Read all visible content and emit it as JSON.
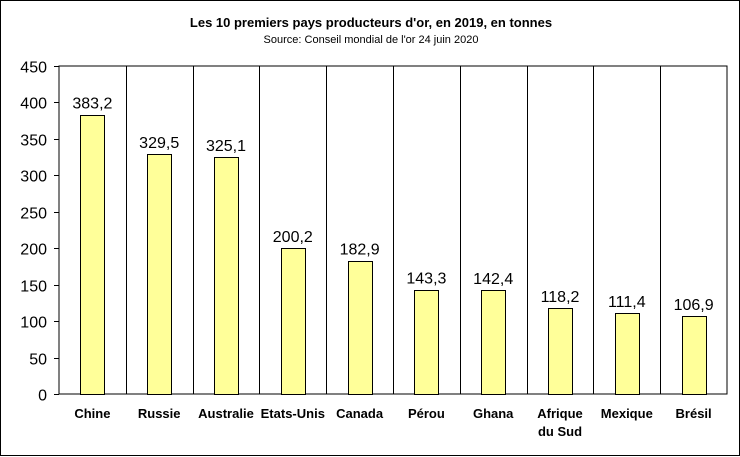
{
  "chart_data": {
    "type": "bar",
    "title": "Les 10 premiers pays producteurs d'or, en 2019, en tonnes",
    "subtitle": "Source: Conseil mondial de l'or 24 juin 2020",
    "categories": [
      "Chine",
      "Russie",
      "Australie",
      "Etats-Unis",
      "Canada",
      "Pérou",
      "Ghana",
      "Afrique du Sud",
      "Mexique",
      "Brésil"
    ],
    "values": [
      383.2,
      329.5,
      325.1,
      200.2,
      182.9,
      143.3,
      142.4,
      118.2,
      111.4,
      106.9
    ],
    "value_labels": [
      "383,2",
      "329,5",
      "325,1",
      "200,2",
      "182,9",
      "143,3",
      "142,4",
      "118,2",
      "111,4",
      "106,9"
    ],
    "ylim": [
      0,
      450
    ],
    "yticks": [
      0,
      50,
      100,
      150,
      200,
      250,
      300,
      350,
      400,
      450
    ],
    "xlabel": "",
    "ylabel": "",
    "grid": "vertical separators between categories",
    "legend": "none",
    "colors": {
      "bar_fill": "#ffff99",
      "bar_stroke": "#000000",
      "axis": "#000000"
    }
  }
}
